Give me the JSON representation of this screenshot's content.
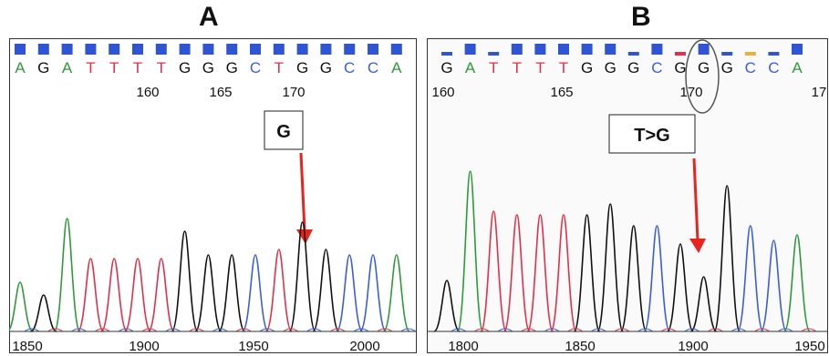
{
  "panels": [
    {
      "id": "A",
      "label": "A",
      "bases": [
        "A",
        "G",
        "A",
        "T",
        "T",
        "T",
        "T",
        "G",
        "G",
        "G",
        "C",
        "T",
        "G",
        "G",
        "C",
        "C",
        "A"
      ],
      "position_labels": [
        "160",
        "165",
        "170"
      ],
      "axis_ticks": [
        "1850",
        "1900",
        "1950",
        "2000"
      ],
      "callout": "G",
      "peak_heights": [
        0.27,
        0.2,
        0.62,
        0.4,
        0.4,
        0.4,
        0.4,
        0.55,
        0.42,
        0.42,
        0.42,
        0.45,
        0.6,
        0.45,
        0.42,
        0.42,
        0.42
      ],
      "circled_position": null
    },
    {
      "id": "B",
      "label": "B",
      "bases": [
        "G",
        "A",
        "T",
        "T",
        "T",
        "T",
        "G",
        "G",
        "G",
        "C",
        "G",
        "G",
        "G",
        "C",
        "C",
        "A"
      ],
      "position_labels": [
        "160",
        "165",
        "170",
        "17"
      ],
      "axis_ticks": [
        "1800",
        "1850",
        "1900",
        "1950"
      ],
      "callout": "T>G",
      "peak_heights": [
        0.28,
        0.88,
        0.66,
        0.64,
        0.64,
        0.64,
        0.64,
        0.7,
        0.58,
        0.58,
        0.48,
        0.3,
        0.8,
        0.58,
        0.5,
        0.53
      ],
      "circled_position": "170"
    }
  ],
  "colors": {
    "A": "#2e9a3a",
    "C": "#3a5fd6",
    "G": "#111111",
    "T": "#e0304a",
    "bar": "#2f55d4",
    "bar_alt": "#e8b23a",
    "arrow": "#e8241c"
  }
}
